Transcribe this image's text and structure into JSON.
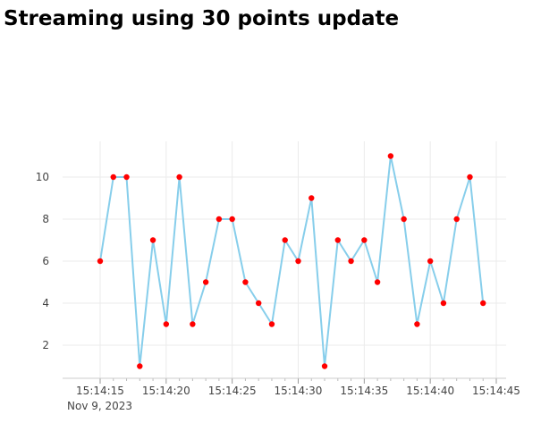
{
  "title": "Streaming using 30 points update",
  "chart_data": {
    "type": "line",
    "title": "Streaming using 30 points update",
    "xlabel": "",
    "ylabel": "",
    "x_tick_labels": [
      "15:14:15",
      "15:14:20",
      "15:14:25",
      "15:14:30",
      "15:14:35",
      "15:14:40",
      "15:14:45"
    ],
    "x_tick_seconds": [
      15,
      20,
      25,
      30,
      35,
      40,
      45
    ],
    "date_label": "Nov 9, 2023",
    "y_ticks": [
      2,
      4,
      6,
      8,
      10
    ],
    "xlim": [
      15,
      45
    ],
    "ylim": [
      0.5,
      11.5
    ],
    "grid": true,
    "line_color": "#87ceeb",
    "marker_color": "#ff0000",
    "series": [
      {
        "x": [
          15,
          16,
          17,
          18,
          19,
          20,
          21,
          22,
          23,
          24,
          25,
          26,
          27,
          28,
          29,
          30,
          31,
          32,
          33,
          34,
          35,
          36,
          37,
          38,
          39,
          40,
          41,
          42,
          43,
          44
        ],
        "values": [
          6,
          10,
          10,
          1,
          7,
          3,
          10,
          3,
          5,
          8,
          8,
          5,
          4,
          3,
          7,
          6,
          9,
          1,
          7,
          6,
          7,
          5,
          11,
          8,
          3,
          6,
          4,
          8,
          10,
          4
        ]
      }
    ]
  }
}
